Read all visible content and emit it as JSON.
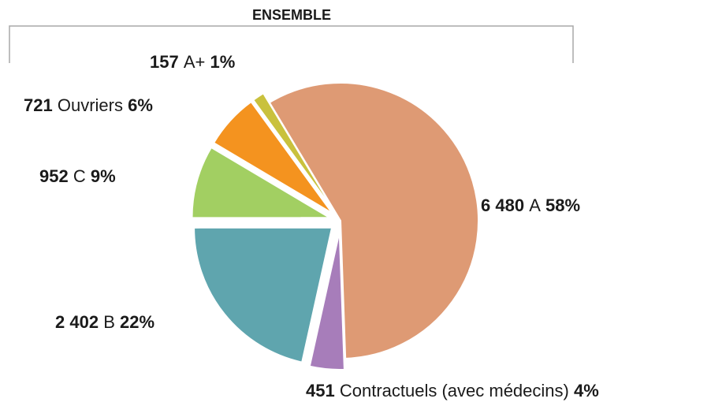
{
  "chart_data": {
    "type": "pie",
    "title": "ENSEMBLE",
    "categories": [
      "A",
      "Contractuels (avec médecins)",
      "B",
      "C",
      "Ouvriers",
      "A+"
    ],
    "values": [
      6480,
      451,
      2402,
      952,
      721,
      157
    ],
    "value_labels": [
      "6 480",
      "451",
      "2 402",
      "952",
      "721",
      "157"
    ],
    "percentages": [
      58,
      4,
      22,
      9,
      6,
      1
    ],
    "percentage_labels": [
      "58%",
      "4%",
      "22%",
      "9%",
      "6%",
      "1%"
    ],
    "colors": [
      "#de9a74",
      "#a77dba",
      "#5fa5ae",
      "#a2cf62",
      "#f4931f",
      "#c9c13d"
    ]
  }
}
